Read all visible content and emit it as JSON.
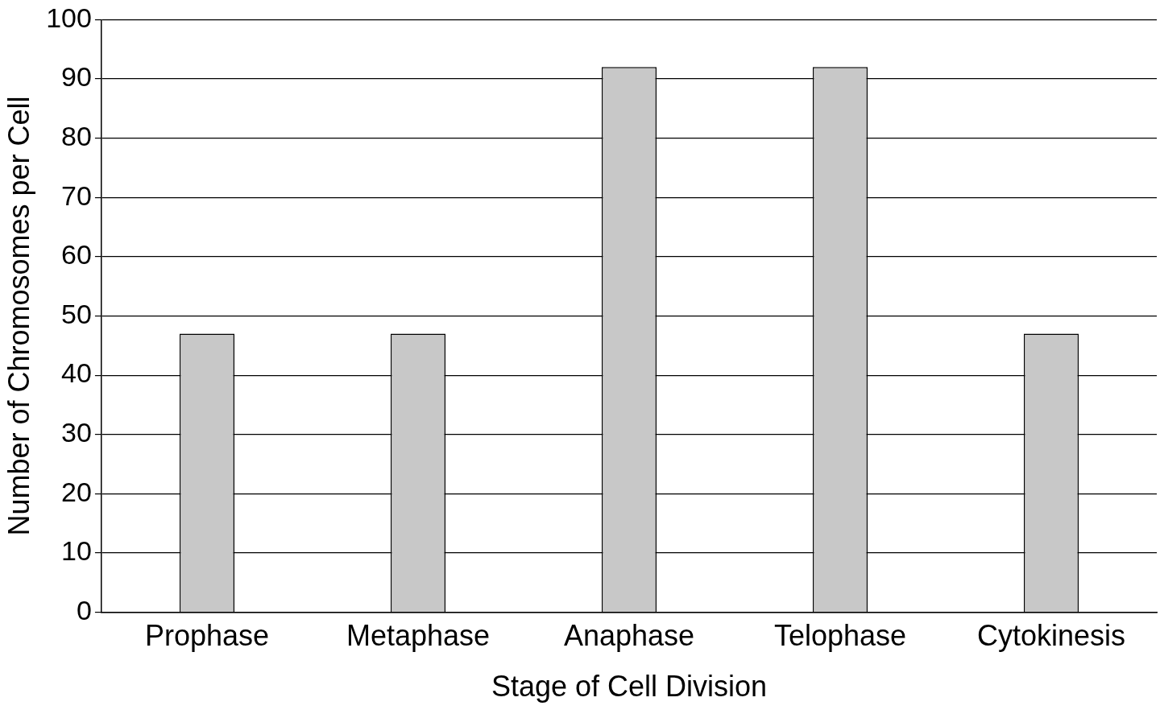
{
  "chart_data": {
    "type": "bar",
    "x_label": "Stage of Cell Division",
    "y_label": "Number of Chromosomes per Cell",
    "categories": [
      "Prophase",
      "Metaphase",
      "Anaphase",
      "Telophase",
      "Cytokinesis"
    ],
    "values": [
      47,
      47,
      92,
      92,
      47
    ],
    "color": "#c8c8c8",
    "ylim": [
      0,
      100
    ],
    "yticks": [
      0,
      10,
      20,
      30,
      40,
      50,
      60,
      70,
      80,
      90,
      100
    ],
    "grid": true
  }
}
